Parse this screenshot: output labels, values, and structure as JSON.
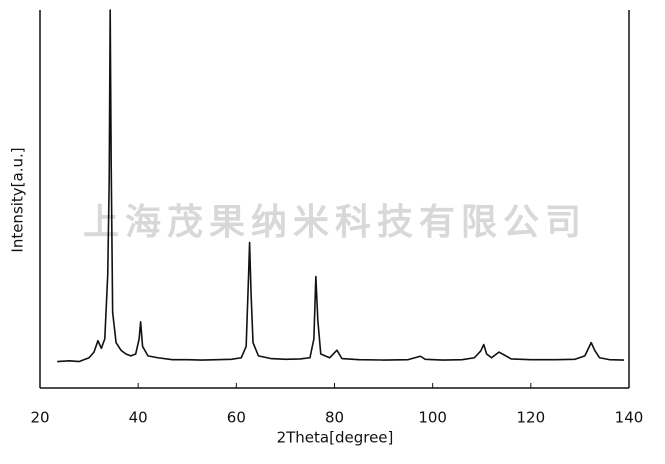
{
  "chart_data": {
    "type": "line",
    "x_label": "2Theta[degree]",
    "y_label": "Intensity[a.u.]",
    "watermark": "上海茂果纳米科技有限公司",
    "xlim": [
      20,
      140
    ],
    "xticks": [
      20,
      40,
      60,
      80,
      100,
      120,
      140
    ],
    "ylim": [
      0,
      100
    ],
    "series": [
      {
        "color": "#111111",
        "x": [
          23.5,
          26,
          28,
          29,
          30,
          31,
          31.8,
          32.5,
          33.2,
          33.8,
          34.1,
          34.3,
          34.5,
          34.8,
          35.5,
          36.5,
          37.5,
          38.5,
          39.5,
          40.2,
          40.5,
          40.9,
          42,
          44,
          47,
          50,
          53,
          56,
          59,
          61,
          62,
          62.5,
          62.7,
          63,
          63.4,
          64.5,
          67,
          70,
          73,
          75,
          75.8,
          76.2,
          76.6,
          77.2,
          79,
          80.5,
          81.5,
          85,
          90,
          95,
          97.5,
          98.5,
          102,
          106,
          108.5,
          109.8,
          110.4,
          111,
          112,
          113.5,
          114.5,
          116,
          120,
          125,
          129,
          131,
          132.3,
          133,
          134,
          136,
          139
        ],
        "values": [
          7,
          7.2,
          7,
          7.5,
          8,
          9.5,
          12.5,
          10.5,
          13,
          30,
          55,
          100,
          60,
          20,
          12,
          10,
          9,
          8.5,
          9,
          13,
          17.5,
          11,
          8.5,
          8,
          7.5,
          7.5,
          7.4,
          7.5,
          7.6,
          8,
          11,
          30,
          38.5,
          25,
          12,
          8.5,
          7.8,
          7.6,
          7.7,
          8,
          13,
          29.5,
          18,
          9,
          8,
          10,
          7.8,
          7.5,
          7.4,
          7.5,
          8.4,
          7.6,
          7.4,
          7.5,
          8,
          9.8,
          11.5,
          9,
          8,
          9.5,
          8.8,
          7.7,
          7.5,
          7.5,
          7.6,
          8.5,
          12,
          10,
          8,
          7.5,
          7.4
        ]
      }
    ]
  }
}
